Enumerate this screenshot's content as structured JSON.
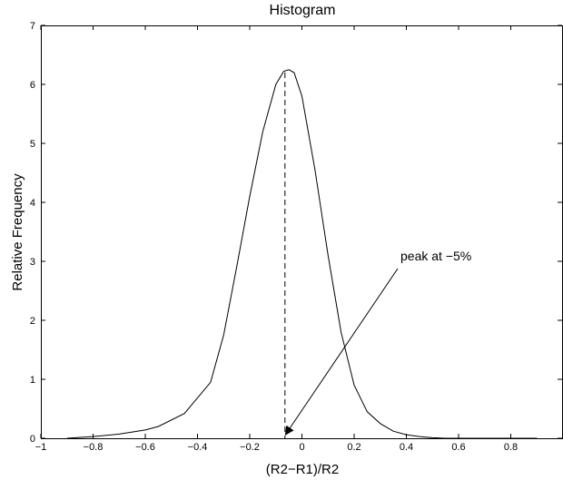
{
  "chart_data": {
    "type": "line",
    "title": "Histogram",
    "xlabel": "(R2−R1)/R2",
    "ylabel": "Relative Frequency",
    "xlim": [
      -1,
      1
    ],
    "ylim": [
      0,
      7
    ],
    "xticks": [
      -1,
      -0.8,
      -0.6,
      -0.4,
      -0.2,
      0,
      0.2,
      0.4,
      0.6,
      0.8
    ],
    "xtick_labels": [
      "−1",
      "−0.8",
      "−0.6",
      "−0.4",
      "−0.2",
      "0",
      "0.2",
      "0.4",
      "0.6",
      "0.8"
    ],
    "yticks": [
      0,
      1,
      2,
      3,
      4,
      5,
      6,
      7
    ],
    "ytick_labels": [
      "0",
      "1",
      "2",
      "3",
      "4",
      "5",
      "6",
      "7"
    ],
    "grid": false,
    "series": [
      {
        "x": [
          -0.9,
          -0.8,
          -0.7,
          -0.6,
          -0.55,
          -0.45,
          -0.35,
          -0.3,
          -0.25,
          -0.2,
          -0.15,
          -0.1,
          -0.07,
          -0.05,
          -0.03,
          0,
          0.05,
          0.1,
          0.15,
          0.2,
          0.25,
          0.3,
          0.35,
          0.4,
          0.45,
          0.5,
          0.55,
          0.6,
          0.7,
          0.8,
          0.9
        ],
        "y": [
          0.0,
          0.03,
          0.07,
          0.14,
          0.2,
          0.42,
          0.95,
          1.75,
          2.9,
          4.1,
          5.2,
          6.0,
          6.22,
          6.25,
          6.2,
          5.8,
          4.55,
          3.1,
          1.8,
          0.9,
          0.45,
          0.25,
          0.12,
          0.06,
          0.03,
          0.01,
          0.0,
          0.0,
          0.0,
          0.0,
          0.0
        ],
        "color": "#000000"
      }
    ],
    "peak_line": {
      "x": -0.065,
      "y": 6.2,
      "style": "dashed"
    },
    "annotation": {
      "text": "peak at −5%",
      "points_to": {
        "x": -0.07,
        "y": 0
      }
    }
  }
}
